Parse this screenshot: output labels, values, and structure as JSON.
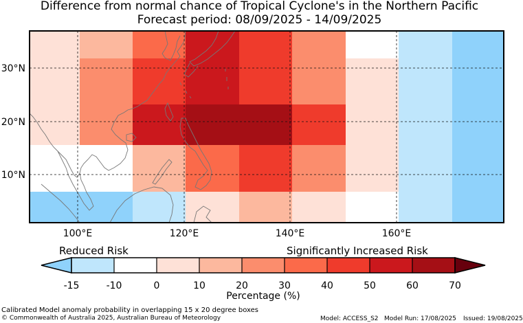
{
  "title": "Difference from normal chance of Tropical Cyclone's in the Northern Pacific",
  "subtitle": "Forecast period: 08/09/2025 - 14/09/2025",
  "map": {
    "lat_ticks": [
      "30°N",
      "20°N",
      "10°N"
    ],
    "lon_ticks": [
      "100°E",
      "120°E",
      "140°E",
      "160°E"
    ],
    "colors": {
      "c_n15": "#8fd2fb",
      "c_n10": "#bfe6fc",
      "c_0": "#ffffff",
      "c_10": "#fee1d7",
      "c_20": "#fcb89e",
      "c_30": "#fb8d6d",
      "c_40": "#fb6a4a",
      "c_50": "#ef3b2c",
      "c_60": "#cb181d",
      "c_70": "#a50f15",
      "c_max": "#67000d"
    }
  },
  "legend": {
    "reduced_label": "Reduced Risk",
    "increased_label": "Significantly Increased Risk",
    "ticks": [
      "-15",
      "-10",
      "0",
      "10",
      "20",
      "30",
      "40",
      "50",
      "60",
      "70"
    ],
    "xlabel": "Percentage (%)"
  },
  "footer": {
    "note": "Calibrated Model anomaly probability in overlapping 15 x 20 degree boxes",
    "copyright": "© Commonwealth of Australia 2025, Australian Bureau of Meteorology",
    "model": "Model: ACCESS_S2",
    "run": "Model Run: 17/08/2025",
    "issued": "Issued: 19/08/2025"
  }
}
